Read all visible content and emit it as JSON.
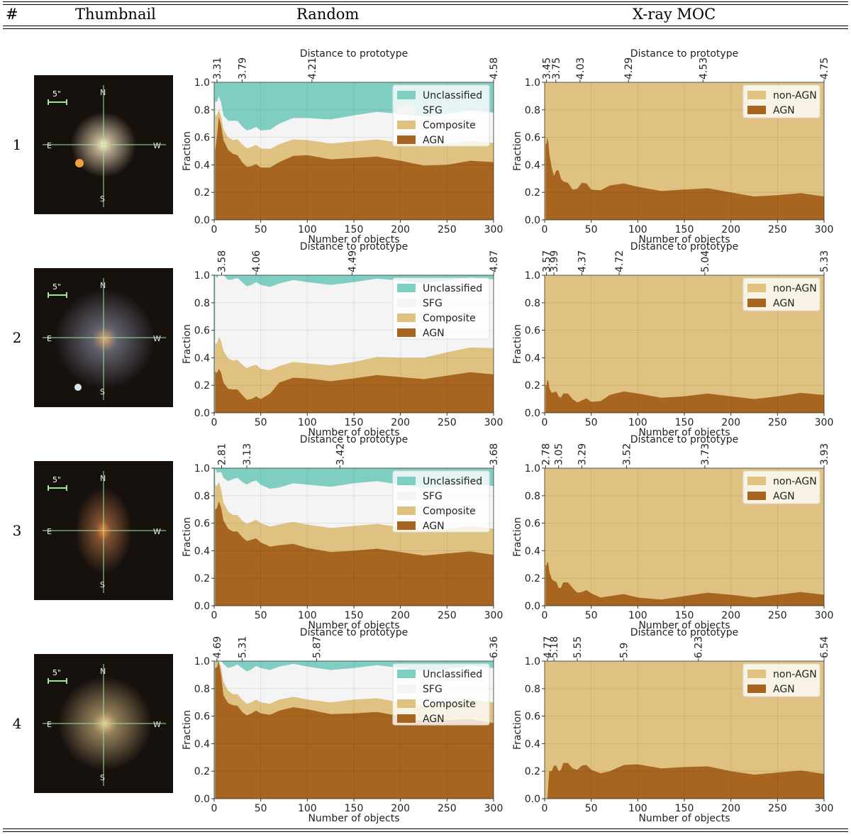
{
  "table": {
    "headers": {
      "index": "#",
      "thumbnail": "Thumbnail",
      "random": "Random",
      "xray": "X-ray MOC"
    },
    "rows": [
      {
        "index": "1",
        "thumb": {
          "scale": "5\"",
          "dirs": [
            "N",
            "E",
            "W",
            "S"
          ]
        }
      },
      {
        "index": "2",
        "thumb": {
          "scale": "5\"",
          "dirs": [
            "N",
            "E",
            "W",
            "S"
          ]
        }
      },
      {
        "index": "3",
        "thumb": {
          "scale": "5\"",
          "dirs": [
            "N",
            "E",
            "W",
            "S"
          ]
        }
      },
      {
        "index": "4",
        "thumb": {
          "scale": "5\"",
          "dirs": [
            "N",
            "E",
            "W",
            "S"
          ]
        }
      }
    ]
  },
  "colors": {
    "agn": "#a8651f",
    "composite": "#dfc281",
    "sfg": "#f4f4f4",
    "unclassified": "#80cdc1",
    "non_agn": "#dfc281"
  },
  "chart_data": [
    {
      "type": "area",
      "panel": "random",
      "row": 1,
      "xlabel": "Number of objects",
      "ylabel": "Fraction",
      "top_xlabel": "Distance to prototype",
      "xlim": [
        0,
        300
      ],
      "ylim": [
        0,
        1
      ],
      "top_ticks": [
        {
          "x": 3,
          "label": "3.31"
        },
        {
          "x": 30,
          "label": "3.79"
        },
        {
          "x": 105,
          "label": "4.21"
        },
        {
          "x": 300,
          "label": "4.58"
        }
      ],
      "legend": [
        "Unclassified",
        "SFG",
        "Composite",
        "AGN"
      ],
      "x": [
        1,
        5,
        10,
        20,
        30,
        40,
        50,
        70,
        100,
        150,
        200,
        250,
        300
      ],
      "series": [
        {
          "name": "AGN",
          "values": [
            0.5,
            0.75,
            0.58,
            0.48,
            0.42,
            0.39,
            0.38,
            0.42,
            0.47,
            0.45,
            0.43,
            0.4,
            0.42
          ]
        },
        {
          "name": "Composite",
          "values": [
            0.76,
            0.8,
            0.66,
            0.58,
            0.55,
            0.53,
            0.52,
            0.55,
            0.58,
            0.57,
            0.56,
            0.55,
            0.56
          ]
        },
        {
          "name": "SFG",
          "values": [
            0.86,
            0.9,
            0.76,
            0.72,
            0.68,
            0.66,
            0.65,
            0.7,
            0.74,
            0.76,
            0.77,
            0.77,
            0.78
          ]
        }
      ]
    },
    {
      "type": "area",
      "panel": "xray",
      "row": 1,
      "xlabel": "Number of objects",
      "ylabel": "Fraction",
      "top_xlabel": "Distance to prototype",
      "xlim": [
        0,
        300
      ],
      "ylim": [
        0,
        1
      ],
      "top_ticks": [
        {
          "x": 2,
          "label": "3.45"
        },
        {
          "x": 12,
          "label": "3.75"
        },
        {
          "x": 38,
          "label": "4.03"
        },
        {
          "x": 90,
          "label": "4.29"
        },
        {
          "x": 170,
          "label": "4.53"
        },
        {
          "x": 300,
          "label": "4.75"
        }
      ],
      "legend": [
        "non-AGN",
        "AGN"
      ],
      "x": [
        1,
        3,
        5,
        10,
        15,
        20,
        30,
        40,
        50,
        70,
        100,
        150,
        200,
        250,
        300
      ],
      "series": [
        {
          "name": "AGN",
          "values": [
            0.55,
            0.6,
            0.48,
            0.32,
            0.36,
            0.28,
            0.22,
            0.27,
            0.22,
            0.25,
            0.24,
            0.22,
            0.2,
            0.18,
            0.17
          ]
        }
      ]
    },
    {
      "type": "area",
      "panel": "random",
      "row": 2,
      "xlabel": "Number of objects",
      "ylabel": "Fraction",
      "top_xlabel": "Distance to prototype",
      "xlim": [
        0,
        300
      ],
      "ylim": [
        0,
        1
      ],
      "top_ticks": [
        {
          "x": 8,
          "label": "3.58"
        },
        {
          "x": 45,
          "label": "4.06"
        },
        {
          "x": 148,
          "label": "4.49"
        },
        {
          "x": 300,
          "label": "4.87"
        }
      ],
      "legend": [
        "Unclassified",
        "SFG",
        "Composite",
        "AGN"
      ],
      "x": [
        1,
        5,
        10,
        20,
        30,
        40,
        50,
        70,
        100,
        150,
        200,
        250,
        300
      ],
      "series": [
        {
          "name": "AGN",
          "values": [
            0.3,
            0.32,
            0.22,
            0.17,
            0.13,
            0.1,
            0.1,
            0.22,
            0.25,
            0.25,
            0.26,
            0.27,
            0.28
          ]
        },
        {
          "name": "Composite",
          "values": [
            0.5,
            0.55,
            0.45,
            0.38,
            0.35,
            0.34,
            0.32,
            0.34,
            0.36,
            0.37,
            0.4,
            0.44,
            0.47
          ]
        },
        {
          "name": "SFG",
          "values": [
            1.0,
            1.0,
            1.0,
            0.97,
            0.95,
            0.93,
            0.93,
            0.94,
            0.95,
            0.95,
            0.96,
            0.96,
            0.97
          ]
        }
      ]
    },
    {
      "type": "area",
      "panel": "xray",
      "row": 2,
      "xlabel": "Number of objects",
      "ylabel": "Fraction",
      "top_xlabel": "Distance to prototype",
      "xlim": [
        0,
        300
      ],
      "ylim": [
        0,
        1
      ],
      "top_ticks": [
        {
          "x": 2,
          "label": "3.57"
        },
        {
          "x": 10,
          "label": "3.99"
        },
        {
          "x": 40,
          "label": "4.37"
        },
        {
          "x": 80,
          "label": "4.72"
        },
        {
          "x": 172,
          "label": "5.04"
        },
        {
          "x": 300,
          "label": "5.33"
        }
      ],
      "legend": [
        "non-AGN",
        "AGN"
      ],
      "x": [
        1,
        3,
        5,
        10,
        15,
        20,
        30,
        40,
        50,
        70,
        100,
        150,
        200,
        250,
        300
      ],
      "series": [
        {
          "name": "AGN",
          "values": [
            0.2,
            0.24,
            0.18,
            0.15,
            0.12,
            0.14,
            0.1,
            0.09,
            0.08,
            0.13,
            0.14,
            0.12,
            0.12,
            0.12,
            0.13
          ]
        }
      ]
    },
    {
      "type": "area",
      "panel": "random",
      "row": 3,
      "xlabel": "Number of objects",
      "ylabel": "Fraction",
      "top_xlabel": "Distance to prototype",
      "xlim": [
        0,
        300
      ],
      "ylim": [
        0,
        1
      ],
      "top_ticks": [
        {
          "x": 8,
          "label": "2.81"
        },
        {
          "x": 35,
          "label": "3.13"
        },
        {
          "x": 135,
          "label": "3.42"
        },
        {
          "x": 300,
          "label": "3.68"
        }
      ],
      "legend": [
        "Unclassified",
        "SFG",
        "Composite",
        "AGN"
      ],
      "x": [
        1,
        5,
        10,
        20,
        30,
        40,
        50,
        70,
        100,
        150,
        200,
        250,
        300
      ],
      "series": [
        {
          "name": "AGN",
          "values": [
            0.7,
            0.76,
            0.62,
            0.54,
            0.5,
            0.48,
            0.46,
            0.44,
            0.42,
            0.4,
            0.39,
            0.38,
            0.37
          ]
        },
        {
          "name": "Composite",
          "values": [
            0.88,
            0.9,
            0.75,
            0.66,
            0.62,
            0.61,
            0.6,
            0.59,
            0.59,
            0.58,
            0.57,
            0.56,
            0.56
          ]
        },
        {
          "name": "SFG",
          "values": [
            1.0,
            0.97,
            0.93,
            0.92,
            0.9,
            0.9,
            0.88,
            0.86,
            0.88,
            0.89,
            0.88,
            0.87,
            0.87
          ]
        }
      ]
    },
    {
      "type": "area",
      "panel": "xray",
      "row": 3,
      "xlabel": "Number of objects",
      "ylabel": "Fraction",
      "top_xlabel": "Distance to prototype",
      "xlim": [
        0,
        300
      ],
      "ylim": [
        0,
        1
      ],
      "top_ticks": [
        {
          "x": 1,
          "label": "2.78"
        },
        {
          "x": 15,
          "label": "3.05"
        },
        {
          "x": 40,
          "label": "3.29"
        },
        {
          "x": 88,
          "label": "3.52"
        },
        {
          "x": 172,
          "label": "3.73"
        },
        {
          "x": 300,
          "label": "3.93"
        }
      ],
      "legend": [
        "non-AGN",
        "AGN"
      ],
      "x": [
        1,
        3,
        5,
        10,
        15,
        20,
        30,
        40,
        50,
        70,
        100,
        150,
        200,
        250,
        300
      ],
      "series": [
        {
          "name": "AGN",
          "values": [
            0.3,
            0.32,
            0.25,
            0.18,
            0.13,
            0.17,
            0.13,
            0.1,
            0.09,
            0.07,
            0.06,
            0.07,
            0.08,
            0.08,
            0.08
          ]
        }
      ]
    },
    {
      "type": "area",
      "panel": "random",
      "row": 4,
      "xlabel": "Number of objects",
      "ylabel": "Fraction",
      "top_xlabel": "Distance to prototype",
      "xlim": [
        0,
        300
      ],
      "ylim": [
        0,
        1
      ],
      "top_ticks": [
        {
          "x": 3,
          "label": "4.69"
        },
        {
          "x": 30,
          "label": "5.31"
        },
        {
          "x": 110,
          "label": "5.87"
        },
        {
          "x": 300,
          "label": "6.36"
        }
      ],
      "legend": [
        "Unclassified",
        "SFG",
        "Composite",
        "AGN"
      ],
      "x": [
        1,
        5,
        10,
        20,
        30,
        40,
        50,
        70,
        100,
        150,
        200,
        250,
        300
      ],
      "series": [
        {
          "name": "AGN",
          "values": [
            0.95,
            1.0,
            0.75,
            0.68,
            0.63,
            0.62,
            0.62,
            0.64,
            0.65,
            0.62,
            0.6,
            0.57,
            0.55
          ]
        },
        {
          "name": "Composite",
          "values": [
            1.0,
            1.0,
            0.85,
            0.76,
            0.72,
            0.7,
            0.7,
            0.72,
            0.72,
            0.72,
            0.7,
            0.7,
            0.7
          ]
        },
        {
          "name": "SFG",
          "values": [
            1.0,
            1.0,
            0.98,
            0.96,
            0.95,
            0.94,
            0.95,
            0.96,
            0.96,
            0.95,
            0.95,
            0.94,
            0.95
          ]
        }
      ]
    },
    {
      "type": "area",
      "panel": "xray",
      "row": 4,
      "xlabel": "Number of objects",
      "ylabel": "Fraction",
      "top_xlabel": "Distance to prototype",
      "xlim": [
        0,
        300
      ],
      "ylim": [
        0,
        1
      ],
      "top_ticks": [
        {
          "x": 3,
          "label": "4.77"
        },
        {
          "x": 10,
          "label": "5.18"
        },
        {
          "x": 35,
          "label": "5.55"
        },
        {
          "x": 85,
          "label": "5.9"
        },
        {
          "x": 165,
          "label": "6.23"
        },
        {
          "x": 300,
          "label": "6.54"
        }
      ],
      "legend": [
        "non-AGN",
        "AGN"
      ],
      "x": [
        1,
        3,
        5,
        10,
        15,
        20,
        30,
        40,
        50,
        70,
        100,
        150,
        200,
        250,
        300
      ],
      "series": [
        {
          "name": "AGN",
          "values": [
            0.0,
            0.0,
            0.2,
            0.24,
            0.2,
            0.26,
            0.22,
            0.24,
            0.21,
            0.2,
            0.25,
            0.23,
            0.2,
            0.19,
            0.18
          ]
        }
      ]
    }
  ]
}
